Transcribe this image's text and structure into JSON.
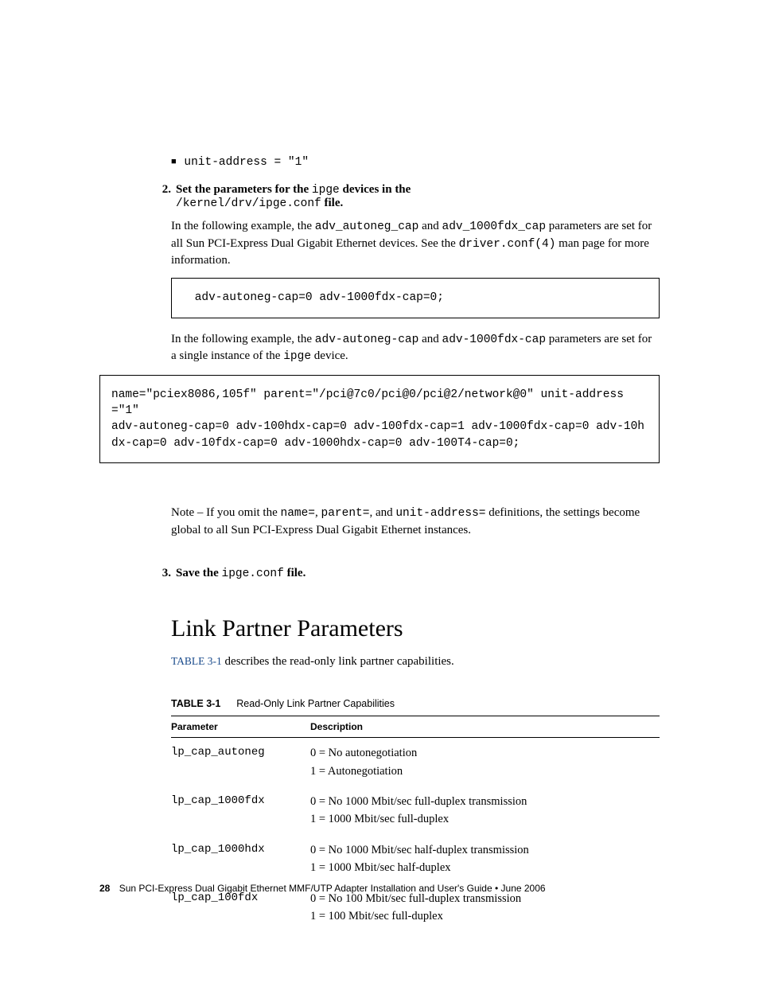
{
  "bullet": {
    "text_prefix": "unit-address",
    "text_suffix": " = \"1\""
  },
  "step2": {
    "num": "2.",
    "parts": {
      "p1": "Set the parameters for the ",
      "code1": "ipge",
      "p2": " devices in the",
      "line2_code": "/kernel/drv/ipge.conf",
      "line2_suffix": " file."
    },
    "para1": {
      "t1": "In the following example, the ",
      "c1": "adv_autoneg_cap",
      "t2": " and ",
      "c2": "adv_1000fdx_cap",
      "t3": " parameters are set for all Sun PCI-Express Dual Gigabit Ethernet devices. See the ",
      "c3": "driver.conf(4)",
      "t4": " man page for more information."
    },
    "codebox1": " adv-autoneg-cap=0 adv-1000fdx-cap=0;",
    "para2": {
      "t1": "In the following example, the ",
      "c1": "adv-autoneg-cap",
      "t2": " and ",
      "c2": "adv-1000fdx-cap",
      "t3": " parameters are set for a single instance of the ",
      "c3": "ipge",
      "t4": " device."
    },
    "codebox2": "name=\"pciex8086,105f\" parent=\"/pci@7c0/pci@0/pci@2/network@0\" unit-address=\"1\"\nadv-autoneg-cap=0 adv-100hdx-cap=0 adv-100fdx-cap=1 adv-1000fdx-cap=0 adv-10hdx-cap=0 adv-10fdx-cap=0 adv-1000hdx-cap=0 adv-100T4-cap=0;",
    "note": {
      "label": "Note – ",
      "t1": "If you omit the ",
      "c1": "name=",
      "t2": ", ",
      "c2": "parent=",
      "t3": ", and ",
      "c3": "unit-address=",
      "t4": " definitions, the settings become global to all Sun PCI-Express Dual Gigabit Ethernet instances."
    }
  },
  "step3": {
    "num": "3.",
    "p1": "Save the ",
    "code": "ipge.conf",
    "p2": " file."
  },
  "section": {
    "title": "Link Partner Parameters",
    "intro_link": "TABLE 3-1",
    "intro_rest": " describes the read-only link partner capabilities."
  },
  "table": {
    "caption_label": "TABLE 3-1",
    "caption_text": "Read-Only Link Partner Capabilities",
    "headers": {
      "col1": "Parameter",
      "col2": "Description"
    },
    "rows": [
      {
        "param": "lp_cap_autoneg",
        "d1": "0 = No autonegotiation",
        "d2": "1 = Autonegotiation"
      },
      {
        "param": "lp_cap_1000fdx",
        "d1": "0 = No 1000 Mbit/sec full-duplex transmission",
        "d2": "1 = 1000 Mbit/sec full-duplex"
      },
      {
        "param": "lp_cap_1000hdx",
        "d1": "0 = No 1000 Mbit/sec half-duplex transmission",
        "d2": "1 = 1000 Mbit/sec half-duplex"
      },
      {
        "param": "lp_cap_100fdx",
        "d1": "0 = No 100 Mbit/sec full-duplex transmission",
        "d2": "1 = 100 Mbit/sec full-duplex"
      }
    ]
  },
  "footer": {
    "page": "28",
    "text": "Sun PCI-Express Dual Gigabit Ethernet MMF/UTP Adapter Installation and User's Guide  •  June 2006"
  },
  "colors": {
    "link": "#1a4b8c"
  }
}
